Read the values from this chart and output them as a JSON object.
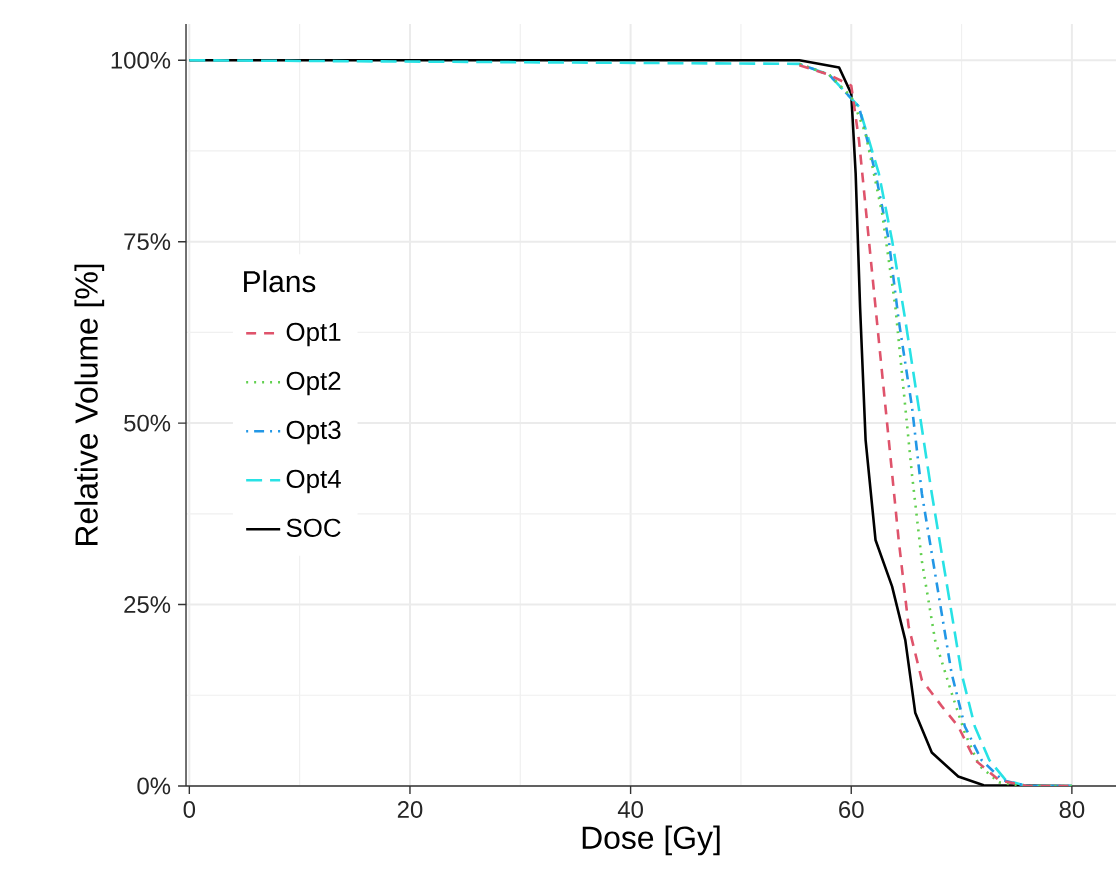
{
  "chart_data": {
    "type": "line",
    "xlabel": "Dose [Gy]",
    "ylabel": "Relative Volume [%]",
    "legend_title": "Plans",
    "legend": "left",
    "grid": true,
    "xlim": [
      -0.3,
      84
    ],
    "ylim": [
      0,
      105
    ],
    "xticks": [
      0,
      20,
      40,
      60,
      80
    ],
    "yticks": [
      {
        "value": 0,
        "label": "0%"
      },
      {
        "value": 25,
        "label": "25%"
      },
      {
        "value": 50,
        "label": "50%"
      },
      {
        "value": 75,
        "label": "75%"
      },
      {
        "value": 100,
        "label": "100%"
      }
    ],
    "series": [
      {
        "name": "Opt1",
        "color": "#df536b",
        "line_style": "dashed",
        "x": [
          55.3,
          58,
          60,
          60.7,
          61.6,
          62.5,
          63.4,
          64.3,
          65.2,
          66.4,
          68.2,
          69.7,
          71.2,
          73.4,
          75.9,
          80
        ],
        "values": [
          99.3,
          98,
          96.5,
          89,
          75.2,
          61.4,
          47.7,
          33.9,
          22,
          14.6,
          11,
          8.2,
          3.6,
          0.8,
          0,
          0
        ]
      },
      {
        "name": "Opt2",
        "color": "#61d04f",
        "line_style": "dotted",
        "x": [
          55.3,
          58,
          60,
          61.3,
          62.8,
          64,
          64.6,
          65.5,
          66.4,
          67.6,
          69.1,
          70.3,
          71.6,
          73.4,
          75.4,
          80
        ],
        "values": [
          99.5,
          98,
          95,
          89.9,
          78.9,
          66,
          56.8,
          43,
          31,
          20.1,
          12.8,
          7.3,
          2.8,
          0.5,
          0,
          0
        ]
      },
      {
        "name": "Opt3",
        "color": "#2297e6",
        "line_style": "dashdot",
        "x": [
          55.3,
          58,
          60.7,
          62.2,
          63.4,
          64.3,
          65.5,
          66.4,
          67.6,
          69.1,
          70.3,
          71.8,
          73.7,
          75.9,
          80
        ],
        "values": [
          99.5,
          98,
          93.6,
          84.4,
          75.2,
          64.2,
          52.3,
          40.3,
          29.3,
          15.5,
          8.2,
          3.6,
          0.8,
          0,
          0
        ]
      },
      {
        "name": "Opt4",
        "color": "#28e2e5",
        "line_style": "longdash",
        "x": [
          0,
          55.3,
          58,
          60.7,
          62.5,
          63.7,
          64.9,
          66.1,
          67.3,
          68.5,
          70,
          71.2,
          72.5,
          74,
          75.9,
          80
        ],
        "values": [
          100,
          99.5,
          98,
          93.6,
          84.4,
          75.2,
          64.2,
          52.3,
          40.3,
          29.3,
          15.5,
          8.2,
          3.6,
          0.8,
          0,
          0
        ]
      },
      {
        "name": "SOC",
        "color": "#000000",
        "line_style": "solid",
        "x": [
          0,
          55.3,
          58.9,
          60,
          60.4,
          60.8,
          61.3,
          62.2,
          63.7,
          64.9,
          65.8,
          67.3,
          69.7,
          72,
          80
        ],
        "values": [
          100,
          100,
          99,
          95.4,
          84.4,
          66,
          47.7,
          33.9,
          27.5,
          20.1,
          10.1,
          4.6,
          1.3,
          0.1,
          0
        ]
      }
    ]
  }
}
